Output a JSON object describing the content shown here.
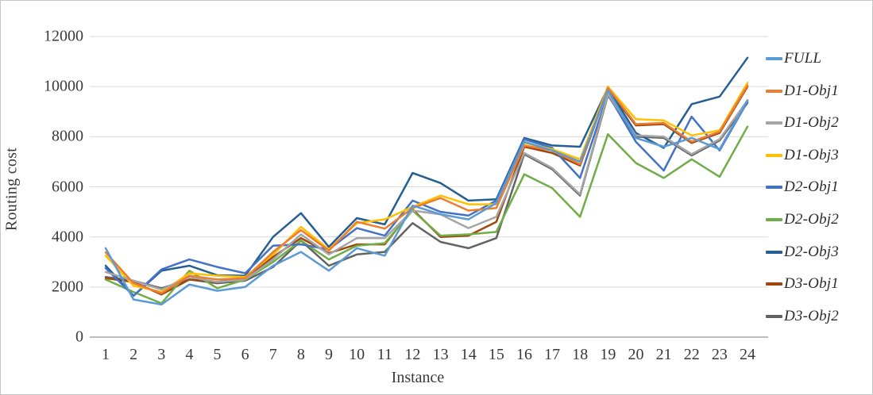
{
  "chart_data": {
    "type": "line",
    "title": "",
    "xlabel": "Instance",
    "ylabel": "Routing cost",
    "ylim": [
      0,
      12000
    ],
    "y_tick_step": 2000,
    "y_ticks": [
      0,
      2000,
      4000,
      6000,
      8000,
      10000,
      12000
    ],
    "grid": "horizontal",
    "legend_position": "right",
    "categories": [
      1,
      2,
      3,
      4,
      5,
      6,
      7,
      8,
      9,
      10,
      11,
      12,
      13,
      14,
      15,
      16,
      17,
      18,
      19,
      20,
      21,
      22,
      23,
      24
    ],
    "series": [
      {
        "name": "FULL",
        "color": "#5B9BD5",
        "values": [
          3550,
          1500,
          1300,
          2100,
          1850,
          2000,
          2850,
          3400,
          2650,
          3550,
          3250,
          5250,
          4900,
          4700,
          5350,
          7800,
          7450,
          7000,
          9850,
          7950,
          7600,
          7950,
          7500,
          9450
        ]
      },
      {
        "name": "D1-Obj1",
        "color": "#ED7D31",
        "values": [
          3380,
          2150,
          1750,
          2450,
          2300,
          2350,
          3400,
          4270,
          3450,
          4600,
          4330,
          5150,
          5550,
          5050,
          5150,
          7650,
          7450,
          6900,
          9950,
          8500,
          8550,
          7800,
          8200,
          10050
        ]
      },
      {
        "name": "D1-Obj2",
        "color": "#A5A5A5",
        "values": [
          2600,
          2250,
          1900,
          2400,
          2200,
          2300,
          3100,
          4100,
          3300,
          3950,
          3950,
          5050,
          4900,
          4350,
          4800,
          7350,
          6750,
          5700,
          9700,
          8050,
          8000,
          7300,
          7900,
          9450
        ]
      },
      {
        "name": "D1-Obj3",
        "color": "#FFC000",
        "values": [
          3250,
          2050,
          1800,
          2550,
          2450,
          2400,
          3300,
          4400,
          3500,
          4550,
          4700,
          5200,
          5650,
          5300,
          5300,
          7750,
          7500,
          7100,
          10000,
          8700,
          8650,
          8050,
          8250,
          10150
        ]
      },
      {
        "name": "D2-Obj1",
        "color": "#4472C4",
        "values": [
          2750,
          1650,
          2700,
          3100,
          2800,
          2550,
          3650,
          3700,
          3500,
          4350,
          4050,
          5450,
          5000,
          4850,
          5450,
          7900,
          7550,
          6350,
          9700,
          7800,
          6650,
          8800,
          7450,
          9400
        ]
      },
      {
        "name": "D2-Obj2",
        "color": "#70AD47",
        "values": [
          2300,
          1800,
          1350,
          2650,
          1950,
          2300,
          3000,
          3850,
          3100,
          3650,
          3750,
          5050,
          4050,
          4100,
          4200,
          6500,
          5950,
          4800,
          8100,
          6950,
          6350,
          7100,
          6400,
          8400
        ]
      },
      {
        "name": "D2-Obj3",
        "color": "#255E91",
        "values": [
          2850,
          1650,
          2650,
          2850,
          2470,
          2450,
          4000,
          4950,
          3600,
          4750,
          4500,
          6550,
          6150,
          5450,
          5500,
          7950,
          7650,
          7600,
          9950,
          8150,
          7550,
          9300,
          9600,
          11150
        ]
      },
      {
        "name": "D3-Obj1",
        "color": "#9E480E",
        "values": [
          2350,
          2200,
          1700,
          2300,
          2200,
          2350,
          3200,
          3950,
          3350,
          3700,
          3700,
          5100,
          4000,
          4050,
          4600,
          7600,
          7350,
          6850,
          9900,
          8450,
          8500,
          7750,
          8150,
          10000
        ]
      },
      {
        "name": "D3-Obj2",
        "color": "#636363",
        "values": [
          2400,
          2250,
          1950,
          2300,
          2150,
          2250,
          2800,
          3850,
          2850,
          3300,
          3400,
          4550,
          3800,
          3550,
          3950,
          7300,
          6700,
          5650,
          9650,
          8000,
          7950,
          7250,
          7850,
          9350
        ]
      }
    ]
  },
  "colors": {
    "gridline": "#d9d9d9",
    "axis_line": "#a6a6a6",
    "tick_text": "#3a3a3a"
  }
}
